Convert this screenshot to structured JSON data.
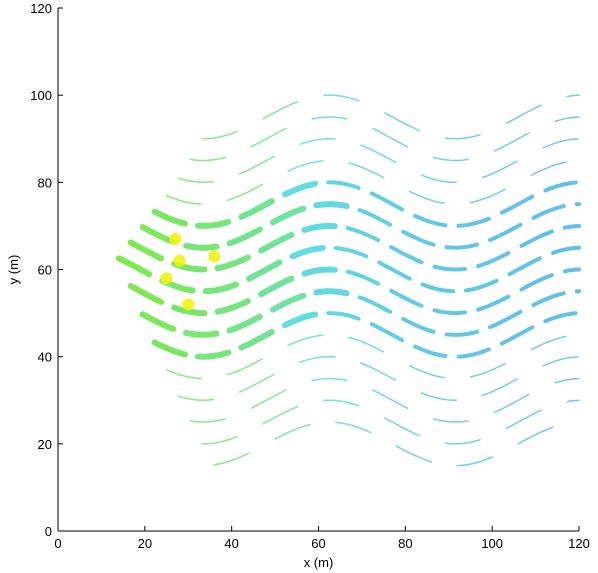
{
  "chart_data": {
    "type": "line",
    "title": "",
    "xlabel": "x (m)",
    "ylabel": "y (m)",
    "xlim": [
      0,
      120
    ],
    "ylim": [
      0,
      120
    ],
    "xticks": [
      0,
      20,
      40,
      60,
      80,
      100,
      120
    ],
    "yticks": [
      0,
      20,
      40,
      60,
      80,
      100,
      120
    ],
    "grid": false,
    "legend": "none",
    "colors": {
      "green": "#66e62e",
      "yellow": "#f2f20d",
      "cyan": "#46d9d9",
      "blue": "#45a9e8"
    },
    "trajectories": {
      "amplitude_y": 5,
      "x_start": 14,
      "x_end": 120,
      "lanes_y": [
        95,
        90,
        85,
        80,
        75,
        70,
        65,
        60,
        55,
        50,
        45,
        40,
        35,
        30,
        25,
        20
      ],
      "note": "wavy paths"
    },
    "sources": [
      {
        "x": 25,
        "y": 58
      },
      {
        "x": 28,
        "y": 62
      },
      {
        "x": 36,
        "y": 63
      },
      {
        "x": 27,
        "y": 67
      },
      {
        "x": 30,
        "y": 52
      }
    ]
  }
}
